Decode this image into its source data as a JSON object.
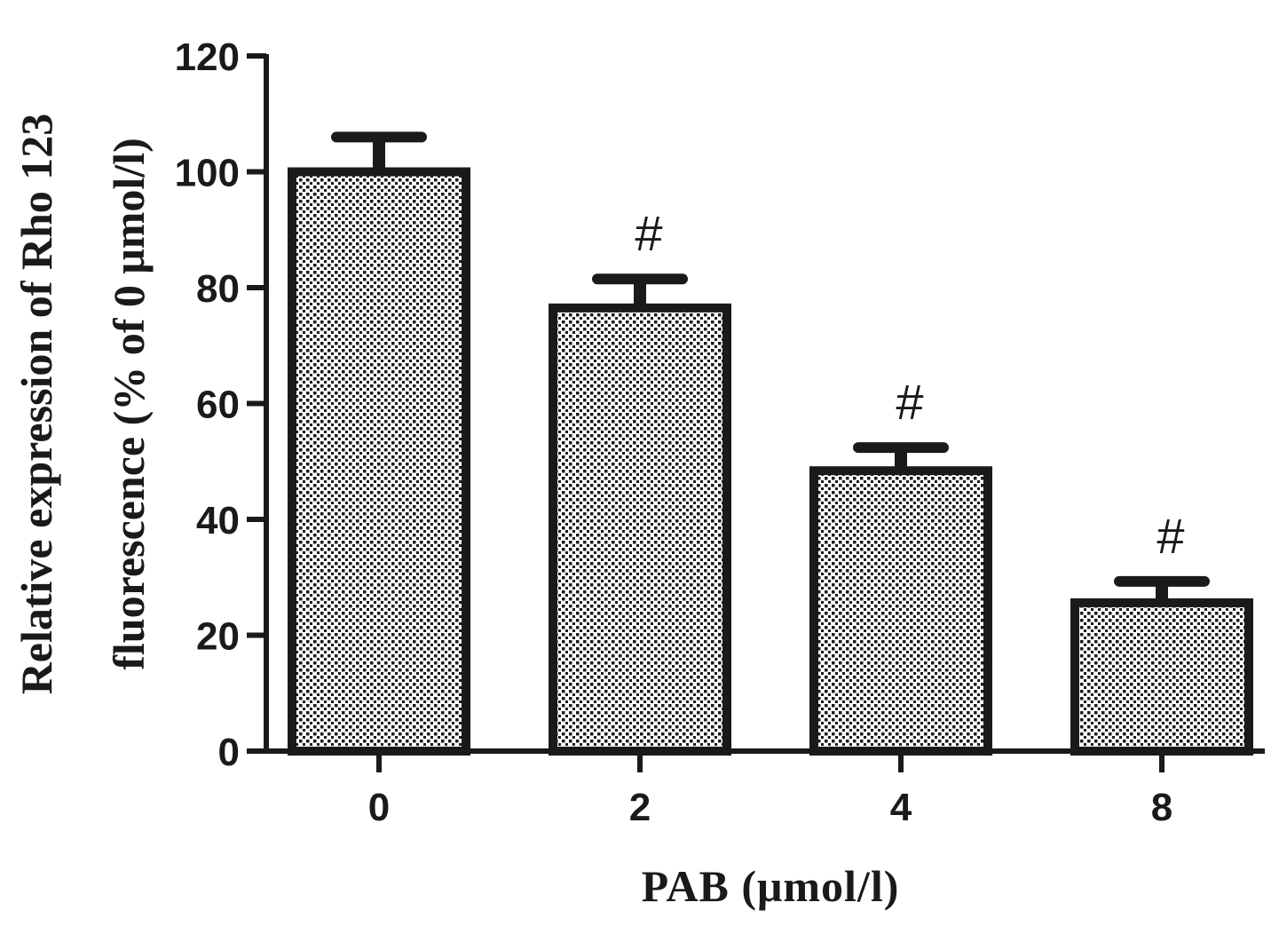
{
  "chart_data": {
    "type": "bar",
    "categories": [
      "0",
      "2",
      "4",
      "8"
    ],
    "values": [
      100,
      76.5,
      48.4,
      25.6
    ],
    "error_upper": [
      106,
      81.5,
      52.4,
      29.3
    ],
    "annotations": [
      "",
      "#",
      "#",
      "#"
    ],
    "xlabel": "PAB (μmol/l)",
    "ylabel_lines": [
      "Relative expression of Rho 123",
      "fluorescence (% of 0 μmol/l)"
    ],
    "ylim": [
      0,
      120
    ],
    "yticks": [
      "0",
      "20",
      "40",
      "60",
      "80",
      "100",
      "120"
    ],
    "grid": false,
    "bar_fill": "checkered pattern",
    "colors": {
      "ink": "#1a1a1a",
      "background": "#ffffff"
    }
  }
}
